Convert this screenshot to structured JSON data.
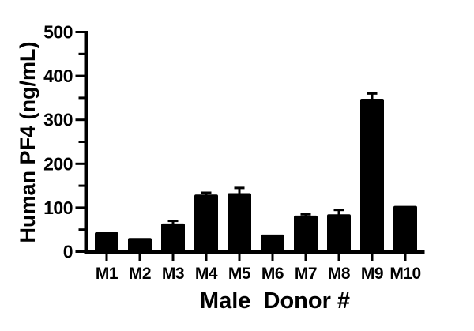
{
  "chart_data": {
    "type": "bar",
    "title": "",
    "xlabel": "Male  Donor #",
    "ylabel": "Human PF4 (ng/mL)",
    "categories": [
      "M1",
      "M2",
      "M3",
      "M4",
      "M5",
      "M6",
      "M7",
      "M8",
      "M9",
      "M10"
    ],
    "values": [
      44,
      31,
      64,
      130,
      133,
      39,
      82,
      85,
      348,
      104
    ],
    "errors_upper": [
      0,
      0,
      6,
      4,
      12,
      0,
      3,
      10,
      12,
      0
    ],
    "ylim": [
      0,
      500
    ],
    "ytick_major": [
      0,
      100,
      200,
      300,
      400,
      500
    ],
    "ytick_minor": [
      50,
      150,
      250,
      350,
      450
    ],
    "bar_color": "#000000",
    "axis_color": "#000000",
    "background_color": "#ffffff",
    "grid": false,
    "legend": false,
    "error_bar_style": "upper caps only"
  }
}
